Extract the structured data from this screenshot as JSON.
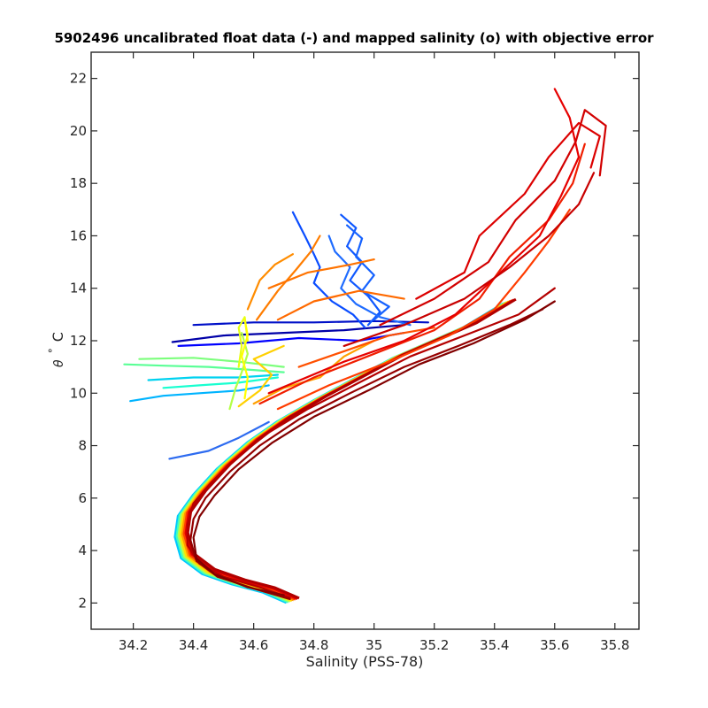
{
  "chart_data": {
    "type": "line",
    "title": "5902496 uncalibrated float data (-) and mapped salinity (o) with objective error",
    "xlabel": "Salinity (PSS-78)",
    "ylabel_symbol": "θ",
    "ylabel_degree": "°",
    "ylabel_unit": "C",
    "xlim": [
      34.06,
      35.88
    ],
    "ylim": [
      1.0,
      23.0
    ],
    "grid": false,
    "legend": "none",
    "x_ticks": [
      {
        "value": 34.2,
        "label": "34.2"
      },
      {
        "value": 34.4,
        "label": "34.4"
      },
      {
        "value": 34.6,
        "label": "34.6"
      },
      {
        "value": 34.8,
        "label": "34.8"
      },
      {
        "value": 35.0,
        "label": "35"
      },
      {
        "value": 35.2,
        "label": "35.2"
      },
      {
        "value": 35.4,
        "label": "35.4"
      },
      {
        "value": 35.6,
        "label": "35.6"
      },
      {
        "value": 35.8,
        "label": "35.8"
      }
    ],
    "y_ticks": [
      {
        "value": 2,
        "label": "2"
      },
      {
        "value": 4,
        "label": "4"
      },
      {
        "value": 6,
        "label": "6"
      },
      {
        "value": 8,
        "label": "8"
      },
      {
        "value": 10,
        "label": "10"
      },
      {
        "value": 12,
        "label": "12"
      },
      {
        "value": 14,
        "label": "14"
      },
      {
        "value": 16,
        "label": "16"
      },
      {
        "value": 18,
        "label": "18"
      },
      {
        "value": 20,
        "label": "20"
      },
      {
        "value": 22,
        "label": "22"
      }
    ],
    "colormap": "jet",
    "core_curve": [
      [
        34.73,
        2.1
      ],
      [
        34.65,
        2.5
      ],
      [
        34.55,
        2.8
      ],
      [
        34.45,
        3.2
      ],
      [
        34.38,
        3.8
      ],
      [
        34.36,
        4.6
      ],
      [
        34.37,
        5.4
      ],
      [
        34.42,
        6.2
      ],
      [
        34.5,
        7.2
      ],
      [
        34.6,
        8.2
      ],
      [
        34.7,
        9.0
      ],
      [
        34.82,
        9.8
      ],
      [
        34.95,
        10.6
      ],
      [
        35.08,
        11.4
      ],
      [
        35.2,
        12.0
      ],
      [
        35.32,
        12.6
      ],
      [
        35.45,
        13.5
      ]
    ],
    "series": [
      {
        "color": "#0000a8",
        "values": [
          [
            34.33,
            11.95
          ],
          [
            34.5,
            12.2
          ],
          [
            34.7,
            12.3
          ],
          [
            34.9,
            12.4
          ],
          [
            35.1,
            12.6
          ]
        ]
      },
      {
        "color": "#0010c8",
        "values": [
          [
            34.4,
            12.6
          ],
          [
            34.6,
            12.7
          ],
          [
            34.8,
            12.7
          ],
          [
            35.0,
            12.75
          ],
          [
            35.18,
            12.7
          ]
        ]
      },
      {
        "color": "#0000ff",
        "values": [
          [
            34.35,
            11.8
          ],
          [
            34.55,
            11.9
          ],
          [
            34.75,
            12.1
          ],
          [
            34.95,
            12.0
          ],
          [
            35.1,
            12.3
          ]
        ]
      },
      {
        "color": "#0a4dff",
        "values": [
          [
            34.73,
            16.9
          ],
          [
            34.77,
            16.0
          ],
          [
            34.8,
            15.3
          ],
          [
            34.82,
            14.8
          ],
          [
            34.8,
            14.2
          ],
          [
            34.86,
            13.5
          ],
          [
            34.93,
            13.0
          ],
          [
            34.97,
            12.5
          ]
        ]
      },
      {
        "color": "#0f58ff",
        "values": [
          [
            34.89,
            16.8
          ],
          [
            34.94,
            16.3
          ],
          [
            34.91,
            15.6
          ],
          [
            34.96,
            15.0
          ],
          [
            34.92,
            14.3
          ],
          [
            34.98,
            13.7
          ],
          [
            35.02,
            13.1
          ],
          [
            34.98,
            12.6
          ]
        ]
      },
      {
        "color": "#1562ff",
        "values": [
          [
            34.91,
            16.4
          ],
          [
            34.96,
            15.9
          ],
          [
            34.94,
            15.2
          ],
          [
            35.0,
            14.5
          ],
          [
            34.96,
            13.9
          ],
          [
            35.05,
            13.3
          ],
          [
            35.0,
            12.8
          ]
        ]
      },
      {
        "color": "#1f6cff",
        "values": [
          [
            34.85,
            16.0
          ],
          [
            34.87,
            15.4
          ],
          [
            34.92,
            14.8
          ],
          [
            34.89,
            14.0
          ],
          [
            34.94,
            13.4
          ],
          [
            35.02,
            12.9
          ],
          [
            35.12,
            12.6
          ]
        ]
      },
      {
        "color": "#2d6bf0",
        "values": [
          [
            34.32,
            7.5
          ],
          [
            34.45,
            7.8
          ],
          [
            34.55,
            8.3
          ],
          [
            34.65,
            8.9
          ]
        ]
      },
      {
        "color": "#00b4ff",
        "values": [
          [
            34.19,
            9.7
          ],
          [
            34.3,
            9.9
          ],
          [
            34.42,
            10.0
          ],
          [
            34.55,
            10.1
          ],
          [
            34.65,
            10.3
          ]
        ]
      },
      {
        "color": "#00d2f0",
        "values": [
          [
            34.25,
            10.5
          ],
          [
            34.4,
            10.6
          ],
          [
            34.55,
            10.6
          ],
          [
            34.68,
            10.7
          ]
        ]
      },
      {
        "color": "#18ffd0",
        "values": [
          [
            34.3,
            10.2
          ],
          [
            34.42,
            10.3
          ],
          [
            34.55,
            10.4
          ],
          [
            34.68,
            10.6
          ]
        ]
      },
      {
        "color": "#5aff96",
        "values": [
          [
            34.17,
            11.1
          ],
          [
            34.3,
            11.05
          ],
          [
            34.45,
            11.0
          ],
          [
            34.58,
            10.9
          ],
          [
            34.7,
            10.8
          ]
        ]
      },
      {
        "color": "#7cff7c",
        "values": [
          [
            34.22,
            11.3
          ],
          [
            34.4,
            11.35
          ],
          [
            34.55,
            11.2
          ],
          [
            34.7,
            11.0
          ]
        ]
      },
      {
        "color": "#b4ff46",
        "values": [
          [
            34.52,
            9.4
          ],
          [
            34.54,
            10.2
          ],
          [
            34.56,
            10.8
          ],
          [
            34.58,
            11.5
          ],
          [
            34.56,
            12.3
          ]
        ]
      },
      {
        "color": "#e6ff14",
        "values": [
          [
            34.55,
            11.0
          ],
          [
            34.56,
            11.8
          ],
          [
            34.55,
            12.5
          ],
          [
            34.57,
            12.9
          ],
          [
            34.58,
            12.0
          ]
        ]
      },
      {
        "color": "#ffff00",
        "values": [
          [
            34.57,
            9.8
          ],
          [
            34.58,
            10.6
          ],
          [
            34.56,
            11.4
          ],
          [
            34.58,
            12.2
          ],
          [
            34.57,
            12.8
          ]
        ]
      },
      {
        "color": "#ffd000",
        "values": [
          [
            34.55,
            9.5
          ],
          [
            34.62,
            10.1
          ],
          [
            34.66,
            10.7
          ],
          [
            34.6,
            11.3
          ],
          [
            34.7,
            11.8
          ]
        ]
      },
      {
        "color": "#ffa000",
        "values": [
          [
            34.6,
            9.6
          ],
          [
            34.7,
            10.2
          ],
          [
            34.82,
            10.6
          ],
          [
            34.9,
            11.4
          ],
          [
            35.0,
            12.0
          ]
        ]
      },
      {
        "color": "#ff8c00",
        "values": [
          [
            34.58,
            13.2
          ],
          [
            34.62,
            14.3
          ],
          [
            34.67,
            14.9
          ],
          [
            34.73,
            15.3
          ]
        ]
      },
      {
        "color": "#ff7d00",
        "values": [
          [
            34.61,
            12.8
          ],
          [
            34.68,
            13.9
          ],
          [
            34.74,
            14.7
          ],
          [
            34.79,
            15.4
          ],
          [
            34.82,
            16.0
          ]
        ]
      },
      {
        "color": "#ff7300",
        "values": [
          [
            34.65,
            14.0
          ],
          [
            34.78,
            14.6
          ],
          [
            34.92,
            14.9
          ],
          [
            35.0,
            15.1
          ]
        ]
      },
      {
        "color": "#ff6a00",
        "values": [
          [
            34.68,
            12.8
          ],
          [
            34.8,
            13.5
          ],
          [
            34.95,
            13.9
          ],
          [
            35.1,
            13.6
          ]
        ]
      },
      {
        "color": "#ff5000",
        "values": [
          [
            34.75,
            11.0
          ],
          [
            34.9,
            11.6
          ],
          [
            35.05,
            12.2
          ],
          [
            35.2,
            12.5
          ]
        ]
      },
      {
        "color": "#ff3c00",
        "values": [
          [
            34.68,
            9.4
          ],
          [
            34.85,
            10.3
          ],
          [
            35.05,
            11.2
          ],
          [
            35.25,
            12.2
          ],
          [
            35.4,
            13.2
          ],
          [
            35.5,
            14.6
          ],
          [
            35.58,
            15.8
          ],
          [
            35.65,
            17.0
          ]
        ]
      },
      {
        "color": "#f01e00",
        "values": [
          [
            34.62,
            9.6
          ],
          [
            34.8,
            10.6
          ],
          [
            35.0,
            11.5
          ],
          [
            35.2,
            12.4
          ],
          [
            35.35,
            13.6
          ],
          [
            35.45,
            15.2
          ],
          [
            35.58,
            16.6
          ],
          [
            35.66,
            18.0
          ],
          [
            35.7,
            19.5
          ]
        ]
      },
      {
        "color": "#e60000",
        "values": [
          [
            34.65,
            10.0
          ],
          [
            34.9,
            11.2
          ],
          [
            35.1,
            12.0
          ],
          [
            35.27,
            13.0
          ],
          [
            35.42,
            14.6
          ],
          [
            35.55,
            16.0
          ],
          [
            35.62,
            17.5
          ],
          [
            35.68,
            19.0
          ],
          [
            35.65,
            20.5
          ],
          [
            35.6,
            21.6
          ]
        ]
      },
      {
        "color": "#dc0000",
        "values": [
          [
            35.14,
            13.6
          ],
          [
            35.3,
            14.6
          ],
          [
            35.35,
            16.0
          ],
          [
            35.5,
            17.6
          ],
          [
            35.58,
            19.0
          ],
          [
            35.68,
            20.3
          ],
          [
            35.75,
            19.8
          ],
          [
            35.72,
            18.6
          ]
        ]
      },
      {
        "color": "#d20000",
        "values": [
          [
            35.02,
            12.6
          ],
          [
            35.2,
            13.6
          ],
          [
            35.38,
            15.0
          ],
          [
            35.47,
            16.6
          ],
          [
            35.6,
            18.1
          ],
          [
            35.67,
            19.6
          ],
          [
            35.7,
            20.8
          ],
          [
            35.77,
            20.2
          ],
          [
            35.75,
            18.3
          ]
        ]
      },
      {
        "color": "#c80000",
        "values": [
          [
            34.9,
            11.8
          ],
          [
            35.1,
            12.6
          ],
          [
            35.3,
            13.6
          ],
          [
            35.45,
            14.8
          ],
          [
            35.58,
            16.0
          ],
          [
            35.68,
            17.2
          ],
          [
            35.73,
            18.4
          ]
        ]
      },
      {
        "color": "#b40000",
        "values": [
          [
            34.72,
            2.2
          ],
          [
            34.62,
            2.6
          ],
          [
            34.5,
            3.0
          ],
          [
            34.42,
            3.5
          ],
          [
            34.38,
            4.2
          ],
          [
            34.38,
            5.0
          ],
          [
            34.4,
            5.8
          ],
          [
            34.46,
            6.6
          ],
          [
            34.55,
            7.6
          ],
          [
            34.65,
            8.5
          ],
          [
            34.78,
            9.4
          ],
          [
            34.95,
            10.4
          ],
          [
            35.12,
            11.4
          ],
          [
            35.3,
            12.2
          ],
          [
            35.48,
            13.0
          ],
          [
            35.6,
            14.0
          ]
        ]
      },
      {
        "color": "#960000",
        "values": [
          [
            34.72,
            2.15
          ],
          [
            34.6,
            2.55
          ],
          [
            34.48,
            3.0
          ],
          [
            34.41,
            3.6
          ],
          [
            34.39,
            4.4
          ],
          [
            34.4,
            5.2
          ],
          [
            34.44,
            6.0
          ],
          [
            34.52,
            7.0
          ],
          [
            34.62,
            8.0
          ],
          [
            34.75,
            9.0
          ],
          [
            34.92,
            10.0
          ],
          [
            35.1,
            11.0
          ],
          [
            35.28,
            11.8
          ],
          [
            35.45,
            12.6
          ],
          [
            35.56,
            13.2
          ]
        ]
      },
      {
        "color": "#820000",
        "values": [
          [
            34.7,
            2.3
          ],
          [
            34.58,
            2.6
          ],
          [
            34.47,
            3.1
          ],
          [
            34.41,
            3.7
          ],
          [
            34.4,
            4.5
          ],
          [
            34.42,
            5.3
          ],
          [
            34.47,
            6.1
          ],
          [
            34.55,
            7.1
          ],
          [
            34.66,
            8.1
          ],
          [
            34.8,
            9.1
          ],
          [
            34.98,
            10.1
          ],
          [
            35.15,
            11.1
          ],
          [
            35.33,
            11.9
          ],
          [
            35.5,
            12.8
          ],
          [
            35.6,
            13.5
          ]
        ]
      }
    ]
  }
}
